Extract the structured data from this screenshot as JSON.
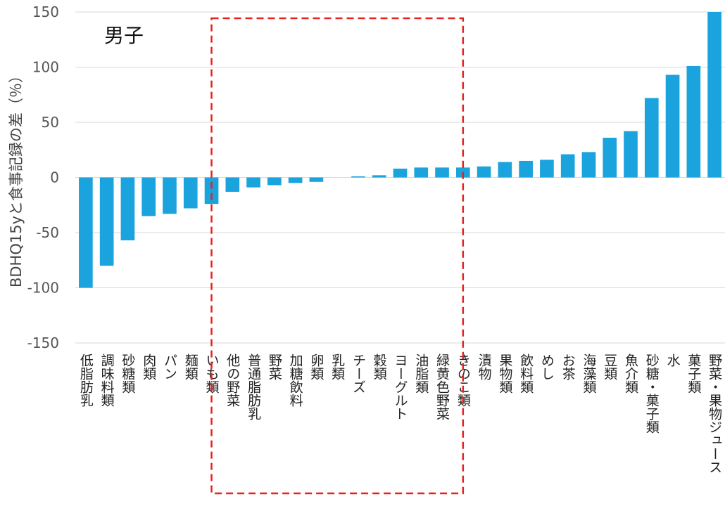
{
  "chart_data": {
    "type": "bar",
    "title": "男子",
    "ylabel": "BDHQ15yと食事記録の差（％）",
    "ylim": [
      -150,
      150
    ],
    "yticks": [
      -150,
      -100,
      -50,
      0,
      50,
      100,
      150
    ],
    "grid": true,
    "bar_color": "#1aa3dc",
    "highlight_color": "#e8231f",
    "highlight_range": [
      "いも類",
      "きのこ類"
    ],
    "categories": [
      "低脂肪乳",
      "調味料類",
      "砂糖類",
      "肉類",
      "パン",
      "麺類",
      "いも類",
      "他の野菜",
      "普通脂肪乳",
      "野菜",
      "加糖飲料",
      "卵類",
      "乳類",
      "チーズ",
      "穀類",
      "ヨーグルト",
      "油脂類",
      "緑黄色野菜",
      "きのこ類",
      "漬物",
      "果物類",
      "飲料類",
      "めし",
      "お茶",
      "海藻類",
      "豆類",
      "魚介類",
      "砂糖・菓子類",
      "水",
      "菓子類",
      "野菜・果物ジュース"
    ],
    "values": [
      -100,
      -80,
      -57,
      -35,
      -33,
      -28,
      -24,
      -13,
      -9,
      -7,
      -5,
      -4,
      0,
      1,
      2,
      8,
      9,
      9,
      9,
      10,
      14,
      15,
      16,
      21,
      23,
      36,
      42,
      72,
      93,
      101,
      150
    ]
  }
}
